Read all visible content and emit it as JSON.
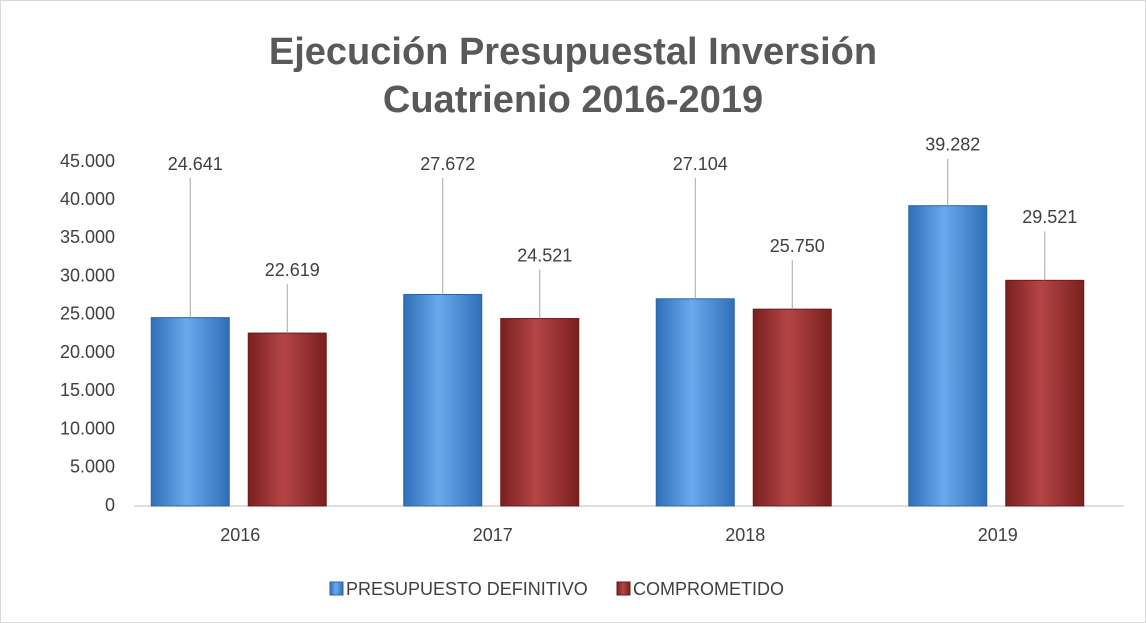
{
  "chart_data": {
    "type": "bar",
    "title": "Ejecución Presupuestal Inversión Cuatrienio 2016-2019",
    "categories": [
      "2016",
      "2017",
      "2018",
      "2019"
    ],
    "series": [
      {
        "name": "PRESUPUESTO DEFINITIVO",
        "color": "#4a8fd9",
        "values": [
          24641,
          27672,
          27104,
          39282
        ],
        "value_labels": [
          "24.641",
          "27.672",
          "27.104",
          "39.282"
        ]
      },
      {
        "name": "COMPROMETIDO",
        "color": "#9e3232",
        "values": [
          22619,
          24521,
          25750,
          29521
        ],
        "value_labels": [
          "22.619",
          "24.521",
          "25.750",
          "29.521"
        ]
      }
    ],
    "ylim": [
      0,
      45000
    ],
    "yticks": [
      {
        "value": 0,
        "label": "0"
      },
      {
        "value": 5000,
        "label": "5.000"
      },
      {
        "value": 10000,
        "label": "10.000"
      },
      {
        "value": 15000,
        "label": "15.000"
      },
      {
        "value": 20000,
        "label": "20.000"
      },
      {
        "value": 25000,
        "label": "25.000"
      },
      {
        "value": 30000,
        "label": "30.000"
      },
      {
        "value": 35000,
        "label": "35.000"
      },
      {
        "value": 40000,
        "label": "40.000"
      },
      {
        "value": 45000,
        "label": "45.000"
      }
    ],
    "grid": false,
    "legend": "bottom"
  }
}
